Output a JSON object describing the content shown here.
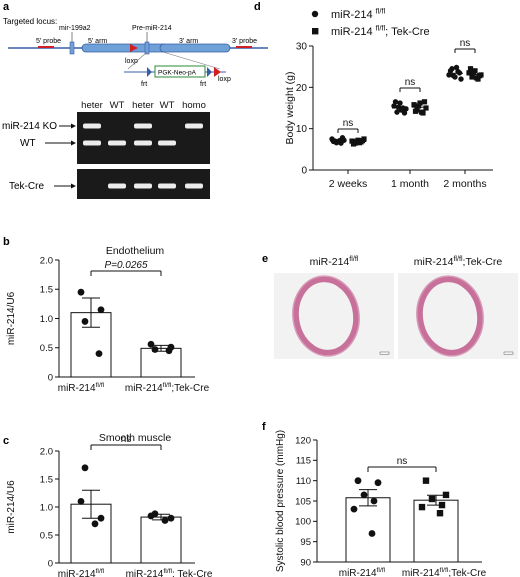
{
  "colors": {
    "locus_line": "#3a5da8",
    "arm": "#6fa1d8",
    "probe": "#d21f26",
    "neo_box": "#2e8b3a",
    "loxp": "#d21f26",
    "frt": "#3a5da8",
    "gel_bg": "#1a1a1a",
    "band": "#ececec",
    "stain": "#c7709a",
    "bar_fill": "#ffffff",
    "points": "#111111"
  },
  "panel_a": {
    "letter": "a",
    "title": "Targeted locus:",
    "labels": {
      "mir199a2": "mir-199a2",
      "premir214": "Pre-miR-214",
      "probe5": "5' probe",
      "arm5": "5' arm",
      "arm3": "3' arm",
      "probe3": "3' probe",
      "loxp_top": "loxp",
      "neo": "PGK-Neo-pA",
      "frt_left": "frt",
      "frt_right": "frt",
      "loxp_bottom": "loxp"
    },
    "gel": {
      "lanes": [
        "heter",
        "WT",
        "heter",
        "WT",
        "homo"
      ],
      "row_labels": {
        "ko": "miR-214 KO",
        "wt": "WT",
        "tek": "Tek-Cre"
      },
      "ko_band": [
        1,
        0,
        1,
        0,
        1
      ],
      "wt_band": [
        1,
        1,
        1,
        1,
        0
      ],
      "tek_band": [
        0,
        1,
        1,
        1,
        1
      ]
    }
  },
  "chart_data": [
    {
      "panel": "b",
      "type": "bar",
      "title": "Endothelium",
      "ylabel": "miR-214/U6",
      "ylim": [
        0,
        2.0
      ],
      "yticks": [
        "0",
        "0.5",
        "1.0",
        "1.5",
        "2.0"
      ],
      "categories": [
        "miR-214fl/fl",
        "miR-214fl/fl;Tek-Cre"
      ],
      "category_display": [
        {
          "base": "miR-214",
          "sup": "fl/fl",
          "suffix": ""
        },
        {
          "base": "miR-214",
          "sup": "fl/fl",
          "suffix": ";Tek-Cre"
        }
      ],
      "values": [
        1.1,
        0.49
      ],
      "errors": [
        0.25,
        0.05
      ],
      "points": [
        [
          1.45,
          1.15,
          0.95,
          0.4
        ],
        [
          0.56,
          0.51,
          0.47,
          0.45
        ]
      ],
      "annotation": "P=0.0265"
    },
    {
      "panel": "c",
      "type": "bar",
      "title": "Smooth muscle",
      "ylabel": "miR-214/U6",
      "ylim": [
        0,
        2.0
      ],
      "yticks": [
        "0",
        "0.5",
        "1.0",
        "1.5",
        "2.0"
      ],
      "categories": [
        "miR-214fl/fl",
        "miR-214fl/fl; Tek-Cre"
      ],
      "category_display": [
        {
          "base": "miR-214",
          "sup": "fl/fl",
          "suffix": ""
        },
        {
          "base": "miR-214",
          "sup": "fl/fl",
          "suffix": "; Tek-Cre"
        }
      ],
      "values": [
        1.05,
        0.82
      ],
      "errors": [
        0.25,
        0.05
      ],
      "points": [
        [
          1.7,
          1.1,
          0.8,
          0.7
        ],
        [
          0.88,
          0.84,
          0.8,
          0.76
        ]
      ],
      "annotation": "ns"
    },
    {
      "panel": "d",
      "type": "scatter",
      "ylabel": "Body weight (g)",
      "ylim": [
        0,
        30
      ],
      "yticks": [
        "0",
        "10",
        "20",
        "30"
      ],
      "categories": [
        "2 weeks",
        "1 month",
        "2 months"
      ],
      "series": [
        {
          "name": "miR-214 fl/fl",
          "marker": "circle",
          "values": [
            [
              7.5,
              7.0,
              6.8,
              6.5,
              7.2,
              6.9,
              7.8,
              6.6,
              7.1
            ],
            [
              15.5,
              14.0,
              16.2,
              15.0,
              14.8,
              16.5,
              13.8,
              15.2,
              14.5
            ],
            [
              23.0,
              24.5,
              22.5,
              23.8,
              22.0,
              24.0,
              23.5,
              22.8,
              24.8
            ]
          ],
          "means": [
            7.0,
            15.0,
            23.4
          ]
        },
        {
          "name": "miR-214 fl/fl; Tek-Cre",
          "marker": "square",
          "values": [
            [
              7.0,
              6.5,
              7.2,
              6.8,
              7.5,
              6.3,
              7.1,
              6.9,
              6.6
            ],
            [
              15.8,
              14.5,
              16.2,
              13.8,
              15.0,
              14.2,
              16.5,
              15.5,
              14.0
            ],
            [
              23.5,
              22.5,
              24.0,
              22.0,
              23.0,
              24.5,
              22.8,
              23.8,
              22.3
            ]
          ],
          "means": [
            6.9,
            15.2,
            23.1
          ]
        }
      ],
      "legend": [
        {
          "base": "miR-214 ",
          "sup": "fl/fl",
          "suffix": ""
        },
        {
          "base": "miR-214 ",
          "sup": "fl/fl",
          "suffix": "; Tek-Cre"
        }
      ],
      "annotations": [
        "ns",
        "ns",
        "ns"
      ]
    },
    {
      "panel": "f",
      "type": "bar",
      "ylabel": "Systolic blood pressure (mmHg)",
      "ylim": [
        90,
        120
      ],
      "yticks": [
        "90",
        "95",
        "100",
        "105",
        "110",
        "115",
        "120"
      ],
      "categories": [
        "miR-214fl/fl",
        "miR-214fl/fl;Tek-Cre"
      ],
      "category_display": [
        {
          "base": "miR-214",
          "sup": "fl/fl",
          "suffix": ""
        },
        {
          "base": "miR-214",
          "sup": "fl/fl",
          "suffix": ";Tek-Cre"
        }
      ],
      "values": [
        105.8,
        105.2
      ],
      "errors": [
        2.0,
        1.2
      ],
      "points": [
        [
          110.0,
          109.5,
          106.5,
          105.0,
          103.0,
          97.0
        ],
        [
          110.0,
          106.5,
          105.5,
          104.0,
          103.5,
          102.0
        ]
      ],
      "markers": [
        "circle",
        "square"
      ],
      "annotation": "ns"
    }
  ],
  "panel_e": {
    "letter": "e",
    "images": [
      {
        "base": "miR-214",
        "sup": "fl/fl",
        "suffix": ""
      },
      {
        "base": "miR-214",
        "sup": "fl/fl",
        "suffix": ";Tek-Cre"
      }
    ]
  },
  "letters": {
    "b": "b",
    "c": "c",
    "d": "d",
    "e": "e",
    "f": "f"
  }
}
